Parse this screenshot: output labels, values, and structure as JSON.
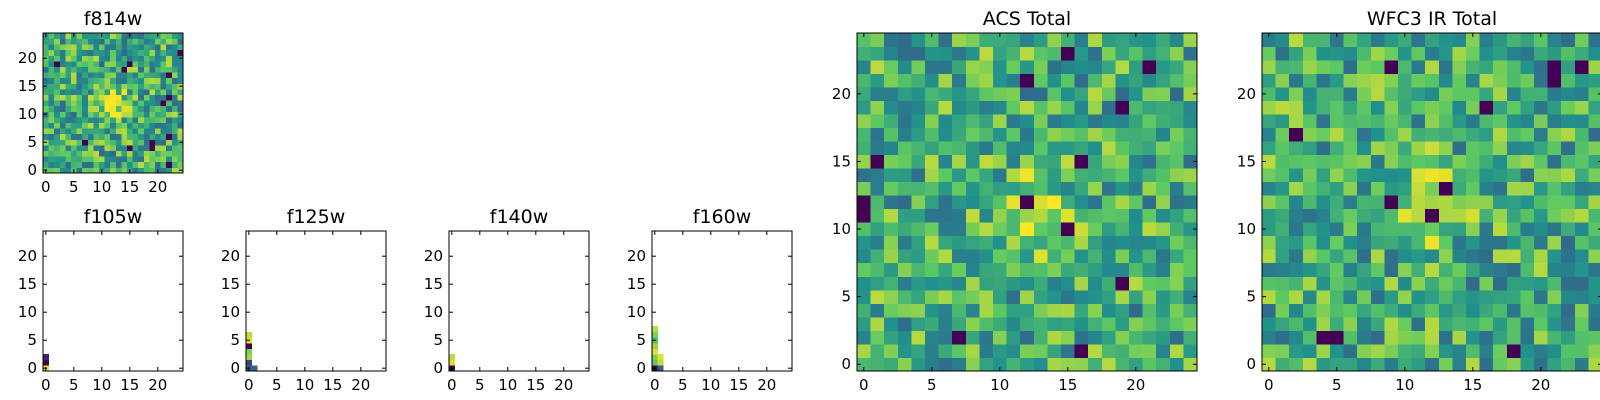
{
  "figure": {
    "colormap": "viridis",
    "colormap_stops": [
      "#440154",
      "#3b528b",
      "#21918c",
      "#5ec962",
      "#fde725"
    ]
  },
  "chart_data": [
    {
      "type": "heatmap",
      "title": "f814w",
      "xticks": [
        "0",
        "5",
        "10",
        "15",
        "20"
      ],
      "yticks": [
        "0",
        "5",
        "10",
        "15",
        "20"
      ],
      "xlim": [
        -0.5,
        24.5
      ],
      "ylim": [
        -0.5,
        24.5
      ],
      "grid_size": 25,
      "image_content": "noise-with-bright-source",
      "source_center": [
        12,
        12
      ],
      "grid": false
    },
    {
      "type": "heatmap",
      "title": "f105w",
      "xticks": [
        "0",
        "5",
        "10",
        "15",
        "20"
      ],
      "yticks": [
        "0",
        "5",
        "10",
        "15",
        "20"
      ],
      "xlim": [
        -0.5,
        24.5
      ],
      "ylim": [
        -0.5,
        24.5
      ],
      "image_content": "mostly-empty",
      "cells": [
        {
          "x": 0,
          "y": 0,
          "level": 0.95
        },
        {
          "x": 0,
          "y": 1,
          "level": 0.0
        },
        {
          "x": 0,
          "y": 2,
          "level": 0.1
        }
      ],
      "grid": false
    },
    {
      "type": "heatmap",
      "title": "f125w",
      "xticks": [
        "0",
        "5",
        "10",
        "15",
        "20"
      ],
      "yticks": [
        "0",
        "5",
        "10",
        "15",
        "20"
      ],
      "xlim": [
        -0.5,
        24.5
      ],
      "ylim": [
        -0.5,
        24.5
      ],
      "image_content": "mostly-empty",
      "cells": [
        {
          "x": 0,
          "y": 0,
          "level": 0.3
        },
        {
          "x": 0,
          "y": 1,
          "level": 0.2
        },
        {
          "x": 0,
          "y": 2,
          "level": 0.85
        },
        {
          "x": 0,
          "y": 3,
          "level": 0.8
        },
        {
          "x": 0,
          "y": 4,
          "level": 0.0
        },
        {
          "x": 0,
          "y": 5,
          "level": 0.95
        },
        {
          "x": 0,
          "y": 6,
          "level": 0.9
        },
        {
          "x": 1,
          "y": 0,
          "level": 0.3
        }
      ],
      "grid": false
    },
    {
      "type": "heatmap",
      "title": "f140w",
      "xticks": [
        "0",
        "5",
        "10",
        "15",
        "20"
      ],
      "yticks": [
        "0",
        "5",
        "10",
        "15",
        "20"
      ],
      "xlim": [
        -0.5,
        24.5
      ],
      "ylim": [
        -0.5,
        24.5
      ],
      "image_content": "mostly-empty",
      "cells": [
        {
          "x": 0,
          "y": 0,
          "level": 0.0
        },
        {
          "x": 0,
          "y": 1,
          "level": 0.95
        },
        {
          "x": 0,
          "y": 2,
          "level": 0.9
        }
      ],
      "grid": false
    },
    {
      "type": "heatmap",
      "title": "f160w",
      "xticks": [
        "0",
        "5",
        "10",
        "15",
        "20"
      ],
      "yticks": [
        "0",
        "5",
        "10",
        "15",
        "20"
      ],
      "xlim": [
        -0.5,
        24.5
      ],
      "ylim": [
        -0.5,
        24.5
      ],
      "image_content": "mostly-empty",
      "cells": [
        {
          "x": 0,
          "y": 0,
          "level": 0.0
        },
        {
          "x": 0,
          "y": 1,
          "level": 0.75
        },
        {
          "x": 0,
          "y": 2,
          "level": 0.8
        },
        {
          "x": 0,
          "y": 3,
          "level": 0.95
        },
        {
          "x": 0,
          "y": 4,
          "level": 0.85
        },
        {
          "x": 0,
          "y": 5,
          "level": 0.7
        },
        {
          "x": 0,
          "y": 6,
          "level": 0.8
        },
        {
          "x": 0,
          "y": 7,
          "level": 0.9
        },
        {
          "x": 1,
          "y": 0,
          "level": 0.3
        },
        {
          "x": 1,
          "y": 1,
          "level": 0.9
        },
        {
          "x": 1,
          "y": 2,
          "level": 0.95
        }
      ],
      "grid": false
    },
    {
      "type": "heatmap",
      "title": "ACS Total",
      "xticks": [
        "0",
        "5",
        "10",
        "15",
        "20"
      ],
      "yticks": [
        "0",
        "5",
        "10",
        "15",
        "20"
      ],
      "xlim": [
        -0.5,
        24.5
      ],
      "ylim": [
        -0.5,
        24.5
      ],
      "grid_size": 25,
      "image_content": "noise-with-bright-source",
      "source_center": [
        12,
        11
      ],
      "grid": false
    },
    {
      "type": "heatmap",
      "title": "WFC3 IR Total",
      "xticks": [
        "0",
        "5",
        "10",
        "15",
        "20"
      ],
      "yticks": [
        "0",
        "5",
        "10",
        "15",
        "20"
      ],
      "xlim": [
        -0.5,
        24.5
      ],
      "ylim": [
        -0.5,
        24.5
      ],
      "grid_size": 25,
      "image_content": "noise-with-bright-source",
      "source_center": [
        12,
        12
      ],
      "grid": false
    }
  ]
}
